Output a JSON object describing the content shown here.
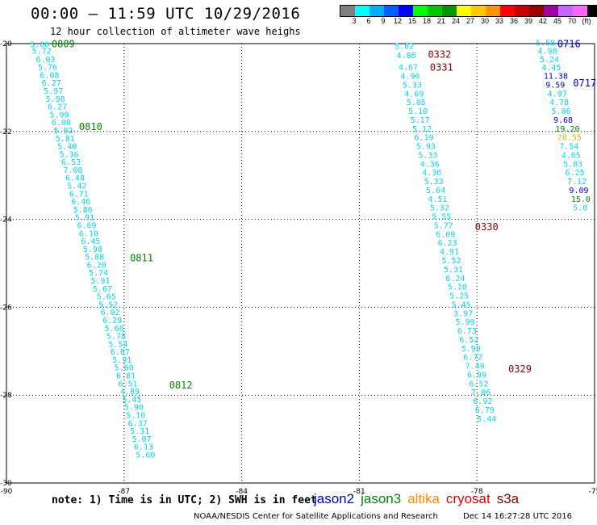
{
  "title": "00:00 – 11:59 UTC 10/29/2016",
  "subtitle": "12 hour collection of altimeter wave heighs",
  "legend": {
    "unit": "(ft)",
    "colors": [
      "#808080",
      "#00ffff",
      "#00b0ff",
      "#0060ff",
      "#0000ff",
      "#00ff00",
      "#00c800",
      "#009600",
      "#ffff00",
      "#ffc800",
      "#ff9600",
      "#ff0000",
      "#c80000",
      "#960000",
      "#a000a0",
      "#c864ff",
      "#ff64ff",
      "#000000"
    ],
    "labels": [
      "3",
      "6",
      "9",
      "12",
      "15",
      "18",
      "21",
      "24",
      "27",
      "30",
      "33",
      "36",
      "39",
      "42",
      "45",
      "70"
    ]
  },
  "note": "note: 1) Time is in UTC; 2) SWH is in feet",
  "missions": [
    {
      "name": "jason2",
      "color": "#0000cc"
    },
    {
      "name": "jason3",
      "color": "#008800"
    },
    {
      "name": "altika",
      "color": "#ff8800"
    },
    {
      "name": "cryosat",
      "color": "#dd0000"
    },
    {
      "name": "s3a",
      "color": "#880000"
    }
  ],
  "footer": {
    "credit": "NOAA/NESDIS Center for Satellite Applications and Research",
    "timestamp": "Dec 14 16:27:28 UTC 2016"
  },
  "chart_data": {
    "type": "scatter",
    "xlim": [
      -90,
      -75
    ],
    "ylim": [
      -30,
      -20
    ],
    "x_ticks": [
      -90,
      -87,
      -84,
      -81,
      -78,
      -75
    ],
    "y_ticks": [
      -20,
      -22,
      -24,
      -26,
      -28,
      -30
    ],
    "grid": true,
    "tracks": [
      {
        "color": "#00d8e8",
        "points": [
          {
            "x": -89.4,
            "y": -20.08,
            "v": "5.66"
          },
          {
            "x": -89.35,
            "y": -20.23,
            "v": "5.72"
          },
          {
            "x": -89.25,
            "y": -20.42,
            "v": "6.03"
          },
          {
            "x": -89.2,
            "y": -20.6,
            "v": "5.76"
          },
          {
            "x": -89.15,
            "y": -20.78,
            "v": "6.08"
          },
          {
            "x": -89.1,
            "y": -20.96,
            "v": "6.27"
          },
          {
            "x": -89.05,
            "y": -21.14,
            "v": "5.97"
          },
          {
            "x": -89.0,
            "y": -21.32,
            "v": "5.98"
          },
          {
            "x": -88.95,
            "y": -21.5,
            "v": "6.27"
          },
          {
            "x": -88.9,
            "y": -21.68,
            "v": "5.99"
          },
          {
            "x": -88.85,
            "y": -21.86,
            "v": "6.08"
          },
          {
            "x": -88.8,
            "y": -22.04,
            "v": "5.92"
          },
          {
            "x": -88.75,
            "y": -22.22,
            "v": "5.81"
          },
          {
            "x": -88.7,
            "y": -22.4,
            "v": "5.40"
          },
          {
            "x": -88.65,
            "y": -22.58,
            "v": "5.36"
          },
          {
            "x": -88.6,
            "y": -22.76,
            "v": "6.53"
          },
          {
            "x": -88.55,
            "y": -22.94,
            "v": "7.08"
          },
          {
            "x": -88.5,
            "y": -23.12,
            "v": "6.48"
          },
          {
            "x": -88.45,
            "y": -23.3,
            "v": "5.42"
          },
          {
            "x": -88.4,
            "y": -23.48,
            "v": "6.71"
          },
          {
            "x": -88.35,
            "y": -23.66,
            "v": "6.46"
          },
          {
            "x": -88.3,
            "y": -23.84,
            "v": "5.86"
          },
          {
            "x": -88.25,
            "y": -24.02,
            "v": "5.91"
          },
          {
            "x": -88.2,
            "y": -24.2,
            "v": "6.69"
          },
          {
            "x": -88.15,
            "y": -24.38,
            "v": "6.10"
          },
          {
            "x": -88.1,
            "y": -24.56,
            "v": "6.45"
          },
          {
            "x": -88.05,
            "y": -24.74,
            "v": "5.98"
          },
          {
            "x": -88.0,
            "y": -24.92,
            "v": "5.88"
          },
          {
            "x": -87.95,
            "y": -25.1,
            "v": "6.20"
          },
          {
            "x": -87.9,
            "y": -25.28,
            "v": "5.74"
          },
          {
            "x": -87.85,
            "y": -25.46,
            "v": "5.91"
          },
          {
            "x": -87.8,
            "y": -25.64,
            "v": "5.67"
          },
          {
            "x": -87.7,
            "y": -25.82,
            "v": "5.65"
          },
          {
            "x": -87.65,
            "y": -26.0,
            "v": "5.52"
          },
          {
            "x": -87.6,
            "y": -26.18,
            "v": "6.02"
          },
          {
            "x": -87.55,
            "y": -26.36,
            "v": "6.29"
          },
          {
            "x": -87.5,
            "y": -26.54,
            "v": "5.68"
          },
          {
            "x": -87.45,
            "y": -26.72,
            "v": "5.78"
          },
          {
            "x": -87.4,
            "y": -26.9,
            "v": "5.54"
          },
          {
            "x": -87.35,
            "y": -27.08,
            "v": "6.07"
          },
          {
            "x": -87.3,
            "y": -27.26,
            "v": "5.91"
          },
          {
            "x": -87.25,
            "y": -27.44,
            "v": "5.60"
          },
          {
            "x": -87.2,
            "y": -27.62,
            "v": "6.81"
          },
          {
            "x": -87.15,
            "y": -27.8,
            "v": "6.51"
          },
          {
            "x": -87.1,
            "y": -27.98,
            "v": "4.89"
          },
          {
            "x": -87.05,
            "y": -28.16,
            "v": "5.45"
          },
          {
            "x": -87.0,
            "y": -28.34,
            "v": "5.90"
          },
          {
            "x": -86.95,
            "y": -28.52,
            "v": "5.10"
          },
          {
            "x": -86.9,
            "y": -28.7,
            "v": "6.37"
          },
          {
            "x": -86.85,
            "y": -28.88,
            "v": "5.31"
          },
          {
            "x": -86.8,
            "y": -29.06,
            "v": "5.07"
          },
          {
            "x": -86.75,
            "y": -29.24,
            "v": "6.13"
          },
          {
            "x": -86.7,
            "y": -29.42,
            "v": "5.60"
          }
        ]
      },
      {
        "color": "#00d8e8",
        "points": [
          {
            "x": -80.1,
            "y": -20.12,
            "v": "5.62"
          },
          {
            "x": -80.05,
            "y": -20.33,
            "v": "4.86"
          },
          {
            "x": -80.0,
            "y": -20.6,
            "v": "4.67"
          },
          {
            "x": -79.95,
            "y": -20.8,
            "v": "4.90"
          },
          {
            "x": -79.9,
            "y": -21.0,
            "v": "5.33"
          },
          {
            "x": -79.85,
            "y": -21.2,
            "v": "4.69"
          },
          {
            "x": -79.8,
            "y": -21.4,
            "v": "5.05"
          },
          {
            "x": -79.75,
            "y": -21.6,
            "v": "5.10"
          },
          {
            "x": -79.7,
            "y": -21.8,
            "v": "5.17"
          },
          {
            "x": -79.65,
            "y": -22.0,
            "v": "5.12"
          },
          {
            "x": -79.6,
            "y": -22.2,
            "v": "6.19"
          },
          {
            "x": -79.55,
            "y": -22.4,
            "v": "5.93"
          },
          {
            "x": -79.5,
            "y": -22.6,
            "v": "5.33"
          },
          {
            "x": -79.45,
            "y": -22.8,
            "v": "4.36"
          },
          {
            "x": -79.4,
            "y": -23.0,
            "v": "4.36"
          },
          {
            "x": -79.35,
            "y": -23.2,
            "v": "5.33"
          },
          {
            "x": -79.3,
            "y": -23.4,
            "v": "5.64"
          },
          {
            "x": -79.25,
            "y": -23.6,
            "v": "4.51"
          },
          {
            "x": -79.2,
            "y": -23.8,
            "v": "5.32"
          },
          {
            "x": -79.15,
            "y": -24.0,
            "v": "5.55"
          },
          {
            "x": -79.1,
            "y": -24.2,
            "v": "5.77"
          },
          {
            "x": -79.05,
            "y": -24.4,
            "v": "6.09"
          },
          {
            "x": -79.0,
            "y": -24.6,
            "v": "6.23"
          },
          {
            "x": -78.95,
            "y": -24.8,
            "v": "4.91"
          },
          {
            "x": -78.9,
            "y": -25.0,
            "v": "5.52"
          },
          {
            "x": -78.85,
            "y": -25.2,
            "v": "5.31"
          },
          {
            "x": -78.8,
            "y": -25.4,
            "v": "6.24"
          },
          {
            "x": -78.75,
            "y": -25.6,
            "v": "5.10"
          },
          {
            "x": -78.7,
            "y": -25.8,
            "v": "5.25"
          },
          {
            "x": -78.65,
            "y": -26.0,
            "v": "5.45"
          },
          {
            "x": -78.6,
            "y": -26.2,
            "v": "3.97"
          },
          {
            "x": -78.55,
            "y": -26.4,
            "v": "5.99"
          },
          {
            "x": -78.5,
            "y": -26.6,
            "v": "6.73"
          },
          {
            "x": -78.45,
            "y": -26.8,
            "v": "6.52"
          },
          {
            "x": -78.4,
            "y": -27.0,
            "v": "5.90"
          },
          {
            "x": -78.35,
            "y": -27.2,
            "v": "6.72"
          },
          {
            "x": -78.3,
            "y": -27.4,
            "v": "7.49"
          },
          {
            "x": -78.25,
            "y": -27.6,
            "v": "6.99"
          },
          {
            "x": -78.2,
            "y": -27.8,
            "v": "6.52"
          },
          {
            "x": -78.15,
            "y": -28.0,
            "v": "7.06"
          },
          {
            "x": -78.1,
            "y": -28.2,
            "v": "6.92"
          },
          {
            "x": -78.05,
            "y": -28.4,
            "v": "6.79"
          },
          {
            "x": -78.0,
            "y": -28.6,
            "v": "5.44"
          }
        ]
      },
      {
        "color": "#00d8e8",
        "points": [
          {
            "x": -76.5,
            "y": -20.05,
            "v": "5.58"
          },
          {
            "x": -76.45,
            "y": -20.23,
            "v": "4.98"
          },
          {
            "x": -76.4,
            "y": -20.42,
            "v": "5.24"
          },
          {
            "x": -76.35,
            "y": -20.61,
            "v": "4.45"
          },
          {
            "x": -76.3,
            "y": -20.8,
            "v": "11.38",
            "c": "#0000cc"
          },
          {
            "x": -76.25,
            "y": -21.0,
            "v": "9.59",
            "c": "#0000cc"
          },
          {
            "x": -76.2,
            "y": -21.2,
            "v": "4.97"
          },
          {
            "x": -76.15,
            "y": -21.4,
            "v": "4.78"
          },
          {
            "x": -76.1,
            "y": -21.6,
            "v": "5.86"
          },
          {
            "x": -76.05,
            "y": -21.8,
            "v": "9.68",
            "c": "#0000cc"
          },
          {
            "x": -76.0,
            "y": -22.0,
            "v": "19.20",
            "c": "#008800"
          },
          {
            "x": -75.95,
            "y": -22.2,
            "v": "28.55",
            "c": "#e8b800"
          },
          {
            "x": -75.9,
            "y": -22.4,
            "v": "7.54"
          },
          {
            "x": -75.85,
            "y": -22.6,
            "v": "4.65"
          },
          {
            "x": -75.8,
            "y": -22.8,
            "v": "5.83"
          },
          {
            "x": -75.75,
            "y": -23.0,
            "v": "6.25"
          },
          {
            "x": -75.7,
            "y": -23.2,
            "v": "7.12"
          },
          {
            "x": -75.65,
            "y": -23.4,
            "v": "9.09",
            "c": "#0000cc"
          },
          {
            "x": -75.6,
            "y": -23.6,
            "v": "15.0",
            "c": "#008800"
          },
          {
            "x": -75.55,
            "y": -23.8,
            "v": "5.0"
          }
        ]
      }
    ],
    "pass_labels": [
      {
        "x": -88.85,
        "y": -20.08,
        "text": "0809",
        "color": "#008800"
      },
      {
        "x": -88.15,
        "y": -21.97,
        "text": "0810",
        "color": "#008800"
      },
      {
        "x": -86.85,
        "y": -24.95,
        "text": "0811",
        "color": "#008800"
      },
      {
        "x": -85.85,
        "y": -27.85,
        "text": "0812",
        "color": "#008800"
      },
      {
        "x": -79.25,
        "y": -20.32,
        "text": "0332",
        "color": "#880000"
      },
      {
        "x": -79.2,
        "y": -20.62,
        "text": "0331",
        "color": "#880000"
      },
      {
        "x": -78.05,
        "y": -24.25,
        "text": "0330",
        "color": "#880000"
      },
      {
        "x": -77.2,
        "y": -27.48,
        "text": "0329",
        "color": "#880000"
      },
      {
        "x": -75.95,
        "y": -20.08,
        "text": "0716",
        "color": "#0000cc"
      },
      {
        "x": -75.55,
        "y": -20.97,
        "text": "0717",
        "color": "#0000cc"
      }
    ]
  }
}
